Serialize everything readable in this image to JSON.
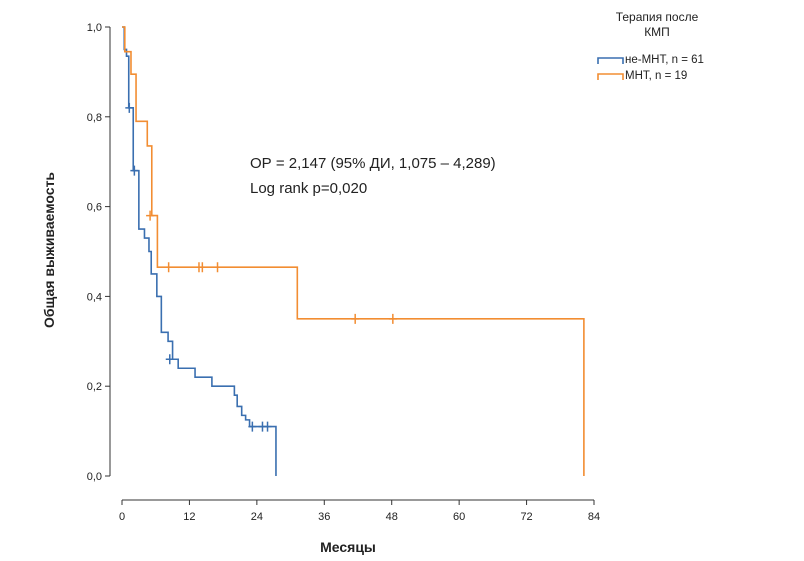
{
  "chart_data": {
    "type": "line",
    "subtype": "kaplan-meier",
    "xlabel": "Месяцы",
    "ylabel": "Общая выживаемость",
    "xlim": [
      0,
      84
    ],
    "ylim": [
      0,
      1.0
    ],
    "xticks": [
      0,
      12,
      24,
      36,
      48,
      60,
      72,
      84
    ],
    "xtick_labels": [
      "0",
      "12",
      "24",
      "36",
      "48",
      "60",
      "72",
      "84"
    ],
    "yticks": [
      0,
      0.2,
      0.4,
      0.6,
      0.8,
      1.0
    ],
    "ytick_labels": [
      "0,0",
      "0,2",
      "0,4",
      "0,6",
      "0,8",
      "1,0"
    ],
    "legend_title": "Терапия после КМП",
    "legend_title_lines": [
      "Терапия после",
      "КМП"
    ],
    "legend_position": "top-right",
    "annotations": [
      "ОР = 2,147 (95% ДИ, 1,075 – 4,289)",
      "Log rank p=0,020"
    ],
    "series": [
      {
        "name": "не-МНТ, n = 61",
        "color": "#3a6fb0",
        "steps": [
          [
            0,
            1.0
          ],
          [
            0.4,
            0.95
          ],
          [
            0.8,
            0.935
          ],
          [
            1.2,
            0.82
          ],
          [
            2.0,
            0.68
          ],
          [
            3.0,
            0.55
          ],
          [
            4.0,
            0.53
          ],
          [
            4.8,
            0.5
          ],
          [
            5.2,
            0.45
          ],
          [
            6.2,
            0.4
          ],
          [
            7.0,
            0.32
          ],
          [
            8.2,
            0.3
          ],
          [
            9.0,
            0.26
          ],
          [
            10.0,
            0.24
          ],
          [
            13.0,
            0.22
          ],
          [
            16.0,
            0.2
          ],
          [
            20.0,
            0.18
          ],
          [
            20.5,
            0.155
          ],
          [
            21.3,
            0.135
          ],
          [
            22.0,
            0.125
          ],
          [
            22.7,
            0.11
          ],
          [
            27.4,
            0.0
          ]
        ],
        "end_x": 27.4,
        "censored": [
          [
            1.3,
            0.82
          ],
          [
            2.2,
            0.68
          ],
          [
            8.5,
            0.26
          ],
          [
            23.2,
            0.11
          ],
          [
            25.0,
            0.11
          ],
          [
            25.9,
            0.11
          ]
        ]
      },
      {
        "name": "МНТ, n = 19",
        "color": "#f28d32",
        "steps": [
          [
            0,
            1.0
          ],
          [
            0.5,
            0.945
          ],
          [
            1.6,
            0.895
          ],
          [
            2.5,
            0.79
          ],
          [
            4.5,
            0.735
          ],
          [
            5.3,
            0.58
          ],
          [
            6.3,
            0.465
          ],
          [
            31.2,
            0.35
          ],
          [
            82.2,
            0.0
          ]
        ],
        "end_x": 82.2,
        "censored": [
          [
            5.0,
            0.58
          ],
          [
            8.3,
            0.465
          ],
          [
            13.7,
            0.465
          ],
          [
            14.3,
            0.465
          ],
          [
            17.0,
            0.465
          ],
          [
            41.5,
            0.35
          ],
          [
            48.2,
            0.35
          ]
        ]
      }
    ]
  }
}
